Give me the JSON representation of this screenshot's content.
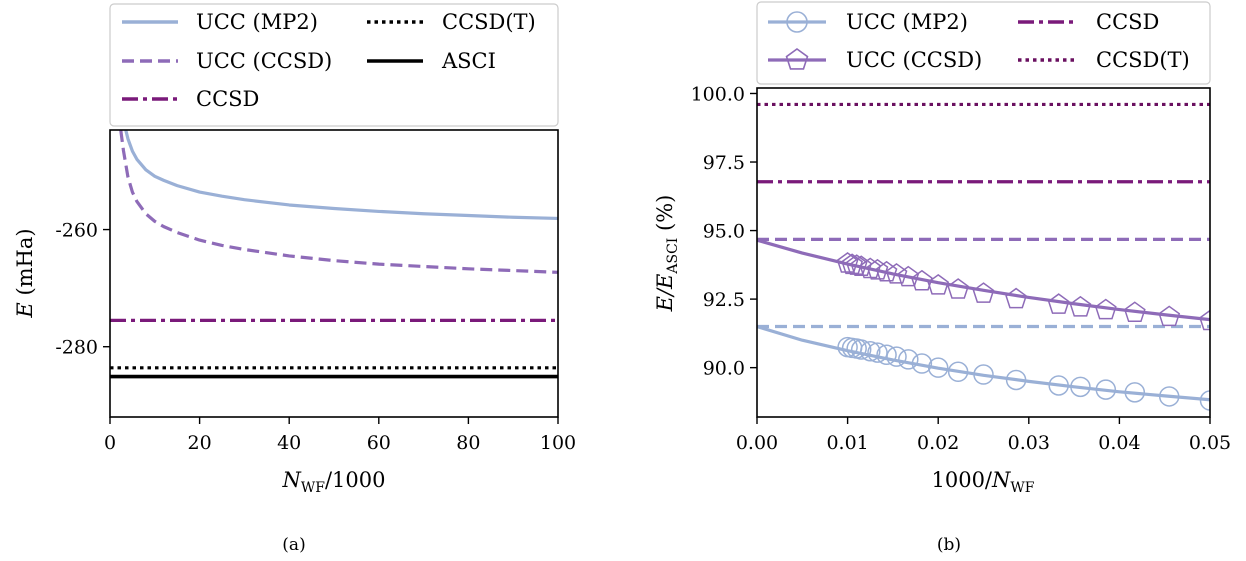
{
  "colors": {
    "ucc_mp2": "#9ab0d6",
    "ucc_ccsd": "#8e6bb8",
    "ccsd_a": "#7a1a7a",
    "ccsd_b": "#7a1a7a",
    "ccsdt_a": "#000000",
    "ccsdt_b": "#6a1060",
    "asci": "#000000"
  },
  "chart_data": [
    {
      "id": "a",
      "type": "line",
      "caption": "(a)",
      "xlabel_main": "N",
      "xlabel_sub": "WF",
      "xlabel_rest": "/1000",
      "ylabel_main": "E",
      "ylabel_rest": " (mHa)",
      "xlim": [
        0,
        100
      ],
      "ylim": [
        -292,
        -243
      ],
      "xticks": [
        0,
        20,
        40,
        60,
        80,
        100
      ],
      "xtick_labels": [
        "0",
        "20",
        "40",
        "60",
        "80",
        "100"
      ],
      "yticks": [
        -260,
        -280
      ],
      "ytick_labels": [
        "-260",
        "-280"
      ],
      "legend_position": "top",
      "legend_labels": {
        "ucc_mp2": "UCC (MP2)",
        "ucc_ccsd": "UCC (CCSD)",
        "ccsd": "CCSD",
        "ccsdt": "CCSD(T)",
        "asci": "ASCI"
      },
      "series": [
        {
          "key": "ucc_mp2",
          "name": "UCC (MP2)",
          "style": "solid",
          "x": [
            3.2,
            4,
            5,
            6,
            8,
            10,
            12,
            15,
            20,
            25,
            30,
            40,
            50,
            60,
            70,
            80,
            90,
            100
          ],
          "y": [
            -242,
            -244.5,
            -246.6,
            -248.0,
            -249.8,
            -250.9,
            -251.6,
            -252.5,
            -253.6,
            -254.3,
            -254.9,
            -255.8,
            -256.4,
            -256.9,
            -257.3,
            -257.6,
            -257.9,
            -258.1
          ]
        },
        {
          "key": "ucc_ccsd",
          "name": "UCC (CCSD)",
          "style": "dashed",
          "x": [
            2.4,
            3,
            4,
            5,
            6,
            8,
            10,
            12,
            15,
            20,
            25,
            30,
            40,
            50,
            60,
            70,
            80,
            90,
            100
          ],
          "y": [
            -243,
            -246.5,
            -251.0,
            -253.6,
            -255.2,
            -257.3,
            -258.6,
            -259.5,
            -260.5,
            -261.8,
            -262.7,
            -263.4,
            -264.5,
            -265.3,
            -265.9,
            -266.3,
            -266.7,
            -267.0,
            -267.3
          ]
        },
        {
          "key": "ccsd",
          "name": "CCSD",
          "style": "dashdot",
          "x": [
            0,
            100
          ],
          "y": [
            -275.5,
            -275.5
          ]
        },
        {
          "key": "ccsdt",
          "name": "CCSD(T)",
          "style": "dotted",
          "x": [
            0,
            100
          ],
          "y": [
            -283.6,
            -283.6
          ]
        },
        {
          "key": "asci",
          "name": "ASCI",
          "style": "solid-thick",
          "x": [
            0,
            100
          ],
          "y": [
            -285.1,
            -285.1
          ]
        }
      ]
    },
    {
      "id": "b",
      "type": "line",
      "caption": "(b)",
      "xlabel_main": "1000/",
      "xlabel_italic": "N",
      "xlabel_sub": "WF",
      "ylabel_main": "E/E",
      "ylabel_sub": "ASCI",
      "ylabel_rest": " (%)",
      "xlim": [
        0,
        0.05
      ],
      "ylim": [
        88.2,
        100.2
      ],
      "xticks": [
        0,
        0.01,
        0.02,
        0.03,
        0.04,
        0.05
      ],
      "xtick_labels": [
        "0.00",
        "0.01",
        "0.02",
        "0.03",
        "0.04",
        "0.05"
      ],
      "yticks": [
        90,
        92.5,
        95,
        97.5,
        100
      ],
      "ytick_labels": [
        "90.0",
        "92.5",
        "95.0",
        "97.5",
        "100.0"
      ],
      "legend_position": "top",
      "legend_labels": {
        "ucc_mp2": "UCC (MP2)",
        "ucc_ccsd": "UCC (CCSD)",
        "ccsd": "CCSD",
        "ccsdt": "CCSD(T)"
      },
      "series": [
        {
          "key": "ucc_mp2_fit",
          "style": "solid",
          "x": [
            0,
            0.005,
            0.01,
            0.015,
            0.02,
            0.025,
            0.03,
            0.035,
            0.04,
            0.045,
            0.05
          ],
          "y": [
            91.5,
            91.0,
            90.62,
            90.28,
            89.98,
            89.72,
            89.5,
            89.3,
            89.12,
            88.97,
            88.83
          ]
        },
        {
          "key": "ucc_mp2_points",
          "name": "UCC (MP2)",
          "style": "circle",
          "x": [
            0.01,
            0.0105,
            0.011,
            0.0115,
            0.0125,
            0.0133,
            0.0143,
            0.0154,
            0.0167,
            0.0182,
            0.02,
            0.0222,
            0.025,
            0.0286,
            0.0333,
            0.0357,
            0.0385,
            0.0417,
            0.0455,
            0.05
          ],
          "y": [
            90.75,
            90.72,
            90.7,
            90.66,
            90.6,
            90.55,
            90.47,
            90.4,
            90.3,
            90.15,
            90.0,
            89.85,
            89.75,
            89.55,
            89.35,
            89.3,
            89.2,
            89.1,
            88.95,
            88.8
          ]
        },
        {
          "key": "ucc_mp2_ref",
          "style": "dashed",
          "x": [
            0,
            0.05
          ],
          "y": [
            91.5,
            91.5
          ]
        },
        {
          "key": "ucc_ccsd_fit",
          "style": "solid",
          "x": [
            0,
            0.005,
            0.01,
            0.015,
            0.02,
            0.025,
            0.03,
            0.035,
            0.04,
            0.045,
            0.05
          ],
          "y": [
            94.65,
            94.18,
            93.78,
            93.42,
            93.1,
            92.82,
            92.56,
            92.33,
            92.12,
            91.93,
            91.75
          ]
        },
        {
          "key": "ucc_ccsd_points",
          "name": "UCC (CCSD)",
          "style": "pentagon",
          "x": [
            0.01,
            0.0105,
            0.011,
            0.0115,
            0.0125,
            0.0133,
            0.0143,
            0.0154,
            0.0167,
            0.0182,
            0.02,
            0.0222,
            0.025,
            0.0286,
            0.0333,
            0.0357,
            0.0385,
            0.0417,
            0.0455,
            0.05
          ],
          "y": [
            93.8,
            93.75,
            93.72,
            93.68,
            93.6,
            93.55,
            93.48,
            93.4,
            93.3,
            93.15,
            93.0,
            92.85,
            92.7,
            92.5,
            92.3,
            92.2,
            92.1,
            92.0,
            91.85,
            91.7
          ]
        },
        {
          "key": "ucc_ccsd_ref",
          "style": "dashed",
          "x": [
            0,
            0.05
          ],
          "y": [
            94.68,
            94.68
          ]
        },
        {
          "key": "ccsd",
          "name": "CCSD",
          "style": "dashdot",
          "x": [
            0,
            0.05
          ],
          "y": [
            96.78,
            96.78
          ]
        },
        {
          "key": "ccsdt",
          "name": "CCSD(T)",
          "style": "dotted",
          "x": [
            0,
            0.05
          ],
          "y": [
            99.6,
            99.6
          ]
        }
      ]
    }
  ]
}
